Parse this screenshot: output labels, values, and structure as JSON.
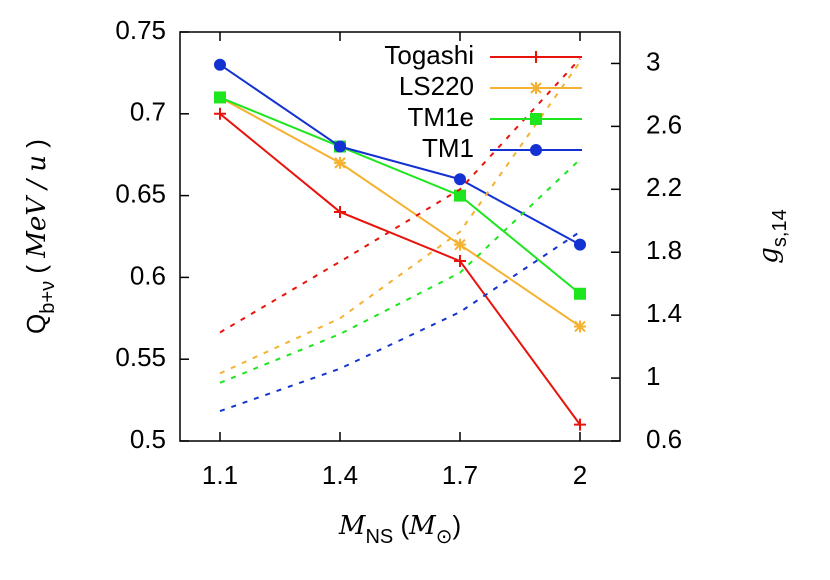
{
  "chart_data": {
    "type": "line",
    "x": [
      1.1,
      1.4,
      1.7,
      2
    ],
    "xlim": [
      1.0,
      2.1
    ],
    "xticks": [
      1.1,
      1.4,
      1.7,
      2
    ],
    "ylim": [
      0.5,
      0.75
    ],
    "yticks": [
      0.5,
      0.55,
      0.6,
      0.65,
      0.7,
      0.75
    ],
    "y2lim": [
      0.6,
      3.2
    ],
    "y2ticks": [
      0.6,
      1,
      1.4,
      1.8,
      2.2,
      2.6,
      3
    ],
    "xlabel": [
      {
        "text": "M",
        "style": "italic"
      },
      {
        "text": "NS",
        "style": "sub"
      },
      {
        "text": " (",
        "style": "normal"
      },
      {
        "text": "M",
        "style": "italic"
      },
      {
        "text": "⊙",
        "style": "sub"
      },
      {
        "text": ")",
        "style": "normal"
      }
    ],
    "ylabel": [
      {
        "text": "Q",
        "style": "normal"
      },
      {
        "text": "b+ν",
        "style": "sub"
      },
      {
        "text": " ( ",
        "style": "normal"
      },
      {
        "text": "MeV / u",
        "style": "italic"
      },
      {
        "text": " )",
        "style": "normal"
      }
    ],
    "y2label": [
      {
        "text": "g",
        "style": "italic"
      },
      {
        "text": "s,14",
        "style": "sub"
      }
    ],
    "legend": "upper right",
    "series": [
      {
        "name": "Togashi",
        "color": "#e8140c",
        "marker": "plus",
        "values": [
          0.7,
          0.64,
          0.61,
          0.51
        ]
      },
      {
        "name": "LS220",
        "color": "#f5b130",
        "marker": "star",
        "values": [
          0.71,
          0.67,
          0.62,
          0.57
        ]
      },
      {
        "name": "TM1e",
        "color": "#1ee61e",
        "marker": "square",
        "values": [
          0.71,
          0.68,
          0.65,
          0.59
        ]
      },
      {
        "name": "TM1",
        "color": "#1432d2",
        "marker": "circle",
        "values": [
          0.73,
          0.68,
          0.66,
          0.62
        ]
      },
      {
        "color": "#e8140c",
        "axis": "y2",
        "dashed": true,
        "values": [
          1.29,
          1.74,
          2.2,
          3.03
        ]
      },
      {
        "color": "#f5b130",
        "axis": "y2",
        "dashed": true,
        "values": [
          1.03,
          1.38,
          1.93,
          3.01
        ]
      },
      {
        "color": "#1ee61e",
        "axis": "y2",
        "dashed": true,
        "values": [
          0.97,
          1.28,
          1.67,
          2.39
        ]
      },
      {
        "color": "#1432d2",
        "axis": "y2",
        "dashed": true,
        "values": [
          0.79,
          1.06,
          1.42,
          1.93
        ]
      }
    ]
  }
}
